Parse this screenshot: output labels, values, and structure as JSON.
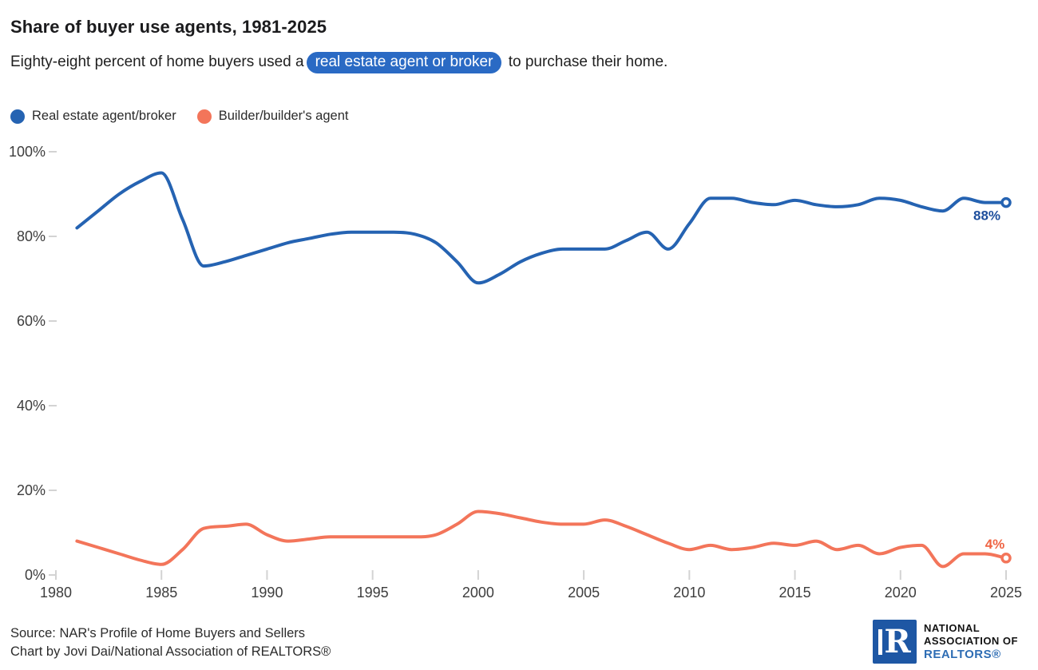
{
  "header": {
    "title": "Share of buyer use agents, 1981-2025",
    "subtitle_before": "Eighty-eight percent of home buyers used a",
    "subtitle_highlight": "real estate agent or broker",
    "subtitle_after": " to purchase their home."
  },
  "legend": [
    {
      "label": "Real estate agent/broker",
      "color": "#2563b2"
    },
    {
      "label": "Builder/builder's agent",
      "color": "#f3755a"
    }
  ],
  "chart_data": {
    "type": "line",
    "title": "Share of buyer use agents, 1981-2025",
    "xlabel": "",
    "ylabel": "",
    "grid": false,
    "legend_position": "top-left",
    "xlim": [
      1980,
      2025
    ],
    "ylim": [
      0,
      100
    ],
    "x_ticks": [
      1980,
      1985,
      1990,
      1995,
      2000,
      2005,
      2010,
      2015,
      2020,
      2025
    ],
    "y_ticks": {
      "values": [
        0,
        20,
        40,
        60,
        80,
        100
      ],
      "labels": [
        "0%",
        "20%",
        "40%",
        "60%",
        "80%",
        "100%"
      ]
    },
    "x": [
      1981,
      1982,
      1983,
      1984,
      1985,
      1986,
      1987,
      1988,
      1989,
      1990,
      1991,
      1992,
      1993,
      1994,
      1995,
      1996,
      1997,
      1998,
      1999,
      2000,
      2001,
      2002,
      2003,
      2004,
      2005,
      2006,
      2007,
      2008,
      2009,
      2010,
      2011,
      2012,
      2013,
      2014,
      2015,
      2016,
      2017,
      2018,
      2019,
      2020,
      2021,
      2022,
      2023,
      2024,
      2025
    ],
    "series": [
      {
        "name": "Real estate agent/broker",
        "color": "#2563b2",
        "end_label": "88%",
        "end_label_color": "#1d4e9c",
        "values": [
          82,
          86,
          90,
          93,
          95,
          84,
          73,
          74,
          75.5,
          77,
          78.5,
          79.5,
          80.5,
          81,
          81,
          81,
          80.5,
          78.5,
          74,
          69,
          71,
          74,
          76,
          77,
          77,
          77,
          79,
          81,
          77,
          83,
          89,
          89,
          88,
          87.5,
          88.5,
          87.5,
          87,
          87.5,
          89,
          88.5,
          87,
          86,
          89,
          88,
          88
        ]
      },
      {
        "name": "Builder/builder's agent",
        "color": "#f3755a",
        "end_label": "4%",
        "end_label_color": "#ef6342",
        "values": [
          8,
          6.5,
          5,
          3.5,
          2.5,
          6,
          11,
          11.5,
          12,
          9.5,
          8,
          8.5,
          9,
          9,
          9,
          9,
          9,
          9.5,
          12,
          15,
          14.5,
          13.5,
          12.5,
          12,
          12,
          13,
          11.5,
          9.5,
          7.5,
          6,
          7,
          6,
          6.5,
          7.5,
          7,
          8,
          6,
          7,
          5,
          6.5,
          7,
          2,
          5,
          5,
          4
        ]
      }
    ]
  },
  "colors": {
    "highlight_bg": "#2a6ac4",
    "highlight_text": "#ffffff",
    "axis_label": "#3d3d3d",
    "tick_mark": "#d3d3d3"
  },
  "footer": {
    "source_line": "Source: NAR's Profile of Home Buyers and Sellers",
    "credit_line": "Chart by Jovi Dai/National Association of REALTORS®"
  },
  "logo": {
    "letter": "R",
    "line1": "NATIONAL",
    "line2": "ASSOCIATION OF",
    "line3": "REALTORS®",
    "square_color": "#1e57a4",
    "text_blue": "#2e6db4"
  }
}
